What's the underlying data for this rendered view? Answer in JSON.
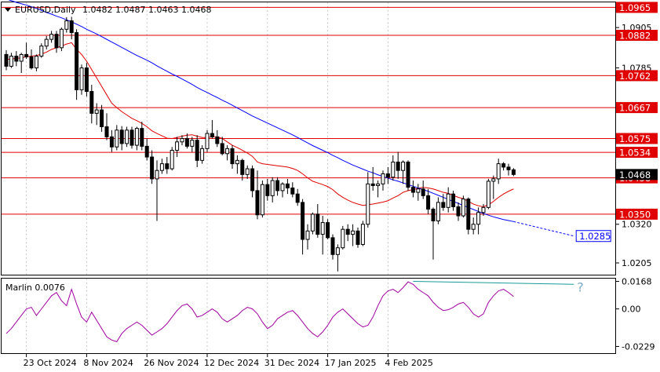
{
  "header": {
    "symbol_label": "EURUSD,Daily",
    "ohlc": "1.0482 1.0487 1.0463 1.0468"
  },
  "chart_data": [
    {
      "type": "candlestick",
      "title": "EURUSD,Daily 1.0482 1.0487 1.0463 1.0468",
      "ylim": [
        1.017,
        1.098
      ],
      "price_ticks": [
        "1.0905",
        "1.0785",
        "1.0455",
        "1.0320",
        "1.0205"
      ],
      "current_price": "1.0468",
      "x_dates": [
        "23 Oct 2024",
        "8 Nov 2024",
        "26 Nov 2024",
        "12 Dec 2024",
        "31 Dec 2024",
        "17 Jan 2025",
        "4 Feb 2025"
      ],
      "levels": [
        {
          "value": 1.0965,
          "label": "1.0965"
        },
        {
          "value": 1.0882,
          "label": "1.0882"
        },
        {
          "value": 1.0762,
          "label": "1.0762"
        },
        {
          "value": 1.0667,
          "label": "1.0667"
        },
        {
          "value": 1.0575,
          "label": "1.0575"
        },
        {
          "value": 1.0534,
          "label": "1.0534"
        },
        {
          "value": 1.0458,
          "label": "1.0458"
        },
        {
          "value": 1.035,
          "label": "1.0350"
        }
      ],
      "ohlc": [
        [
          1.0825,
          1.0838,
          1.0778,
          1.079
        ],
        [
          1.079,
          1.083,
          1.0785,
          1.082
        ],
        [
          1.082,
          1.0835,
          1.079,
          1.0805
        ],
        [
          1.0805,
          1.083,
          1.077,
          1.0825
        ],
        [
          1.0825,
          1.086,
          1.0812,
          1.0818
        ],
        [
          1.0818,
          1.084,
          1.078,
          1.0785
        ],
        [
          1.0785,
          1.0825,
          1.0775,
          1.082
        ],
        [
          1.082,
          1.0858,
          1.0815,
          1.085
        ],
        [
          1.085,
          1.088,
          1.084,
          1.087
        ],
        [
          1.087,
          1.0895,
          1.086,
          1.0885
        ],
        [
          1.0885,
          1.0895,
          1.083,
          1.0845
        ],
        [
          1.0845,
          1.0905,
          1.0835,
          1.09
        ],
        [
          1.09,
          1.0936,
          1.089,
          1.0925
        ],
        [
          1.0925,
          1.0937,
          1.087,
          1.089
        ],
        [
          1.089,
          1.09,
          1.069,
          1.072
        ],
        [
          1.072,
          1.0795,
          1.0705,
          1.0785
        ],
        [
          1.0785,
          1.08,
          1.07,
          1.0715
        ],
        [
          1.0715,
          1.0735,
          1.062,
          1.065
        ],
        [
          1.065,
          1.068,
          1.0615,
          1.066
        ],
        [
          1.066,
          1.0675,
          1.0595,
          1.061
        ],
        [
          1.061,
          1.065,
          1.057,
          1.058
        ],
        [
          1.058,
          1.06,
          1.0535,
          1.055
        ],
        [
          1.055,
          1.0615,
          1.054,
          1.06
        ],
        [
          1.06,
          1.0612,
          1.054,
          1.056
        ],
        [
          1.056,
          1.061,
          1.055,
          1.06
        ],
        [
          1.06,
          1.061,
          1.0545,
          1.0555
        ],
        [
          1.0555,
          1.061,
          1.054,
          1.0605
        ],
        [
          1.0605,
          1.0625,
          1.054,
          1.0552
        ],
        [
          1.0552,
          1.0575,
          1.051,
          1.052
        ],
        [
          1.052,
          1.054,
          1.044,
          1.0455
        ],
        [
          1.0455,
          1.051,
          1.033,
          1.048
        ],
        [
          1.048,
          1.0515,
          1.047,
          1.05
        ],
        [
          1.05,
          1.052,
          1.047,
          1.0485
        ],
        [
          1.0485,
          1.055,
          1.048,
          1.054
        ],
        [
          1.054,
          1.058,
          1.052,
          1.0565
        ],
        [
          1.0565,
          1.0585,
          1.0555,
          1.0575
        ],
        [
          1.0575,
          1.059,
          1.0545,
          1.0552
        ],
        [
          1.0552,
          1.058,
          1.0535,
          1.057
        ],
        [
          1.057,
          1.0585,
          1.049,
          1.051
        ],
        [
          1.051,
          1.0555,
          1.05,
          1.0545
        ],
        [
          1.0545,
          1.06,
          1.0535,
          1.059
        ],
        [
          1.059,
          1.063,
          1.0575,
          1.058
        ],
        [
          1.058,
          1.06,
          1.055,
          1.056
        ],
        [
          1.056,
          1.058,
          1.0525,
          1.053
        ],
        [
          1.053,
          1.0555,
          1.051,
          1.0545
        ],
        [
          1.0545,
          1.0555,
          1.0485,
          1.05
        ],
        [
          1.05,
          1.0525,
          1.047,
          1.051
        ],
        [
          1.051,
          1.0515,
          1.045,
          1.0468
        ],
        [
          1.0468,
          1.0495,
          1.0455,
          1.0485
        ],
        [
          1.0485,
          1.0495,
          1.04,
          1.042
        ],
        [
          1.042,
          1.048,
          1.0335,
          1.0348
        ],
        [
          1.0348,
          1.045,
          1.034,
          1.0438
        ],
        [
          1.0438,
          1.0455,
          1.039,
          1.0405
        ],
        [
          1.0405,
          1.046,
          1.0385,
          1.045
        ],
        [
          1.045,
          1.046,
          1.0405,
          1.042
        ],
        [
          1.042,
          1.0445,
          1.04,
          1.044
        ],
        [
          1.044,
          1.0455,
          1.041,
          1.0428
        ],
        [
          1.0428,
          1.0445,
          1.04,
          1.041
        ],
        [
          1.041,
          1.0425,
          1.0375,
          1.0385
        ],
        [
          1.0385,
          1.0395,
          1.023,
          1.0275
        ],
        [
          1.0275,
          1.032,
          1.0245,
          1.03
        ],
        [
          1.03,
          1.0355,
          1.029,
          1.035
        ],
        [
          1.035,
          1.038,
          1.028,
          1.029
        ],
        [
          1.029,
          1.0345,
          1.023,
          1.0325
        ],
        [
          1.0325,
          1.0335,
          1.0275,
          1.028
        ],
        [
          1.028,
          1.029,
          1.0215,
          1.023
        ],
        [
          1.023,
          1.026,
          1.018,
          1.025
        ],
        [
          1.025,
          1.0315,
          1.0245,
          1.0305
        ],
        [
          1.0305,
          1.032,
          1.027,
          1.029
        ],
        [
          1.029,
          1.032,
          1.0255,
          1.03
        ],
        [
          1.03,
          1.031,
          1.025,
          1.026
        ],
        [
          1.026,
          1.033,
          1.0255,
          1.032
        ],
        [
          1.032,
          1.0475,
          1.031,
          1.044
        ],
        [
          1.044,
          1.049,
          1.042,
          1.0435
        ],
        [
          1.0435,
          1.045,
          1.04,
          1.044
        ],
        [
          1.044,
          1.048,
          1.042,
          1.047
        ],
        [
          1.047,
          1.049,
          1.044,
          1.046
        ],
        [
          1.046,
          1.0525,
          1.045,
          1.0505
        ],
        [
          1.0505,
          1.0535,
          1.0455,
          1.048
        ],
        [
          1.048,
          1.051,
          1.044,
          1.0505
        ],
        [
          1.0505,
          1.051,
          1.042,
          1.043
        ],
        [
          1.043,
          1.045,
          1.04,
          1.0415
        ],
        [
          1.0415,
          1.044,
          1.039,
          1.0425
        ],
        [
          1.0425,
          1.045,
          1.0395,
          1.0405
        ],
        [
          1.0405,
          1.0425,
          1.035,
          1.0365
        ],
        [
          1.0365,
          1.037,
          1.0215,
          1.033
        ],
        [
          1.033,
          1.04,
          1.032,
          1.0385
        ],
        [
          1.0385,
          1.041,
          1.036,
          1.037
        ],
        [
          1.037,
          1.043,
          1.0355,
          1.041
        ],
        [
          1.041,
          1.042,
          1.036,
          1.0372
        ],
        [
          1.0372,
          1.0385,
          1.033,
          1.0345
        ],
        [
          1.0345,
          1.0405,
          1.034,
          1.0395
        ],
        [
          1.0395,
          1.04,
          1.029,
          1.0305
        ],
        [
          1.0305,
          1.034,
          1.029,
          1.032
        ],
        [
          1.032,
          1.037,
          1.029,
          1.0355
        ],
        [
          1.0355,
          1.038,
          1.0345,
          1.037
        ],
        [
          1.037,
          1.0455,
          1.0365,
          1.0448
        ],
        [
          1.0448,
          1.0465,
          1.0395,
          1.0455
        ],
        [
          1.0455,
          1.0515,
          1.044,
          1.05
        ],
        [
          1.05,
          1.0505,
          1.048,
          1.049
        ],
        [
          1.049,
          1.05,
          1.0465,
          1.0482
        ],
        [
          1.0482,
          1.0487,
          1.0463,
          1.0468
        ]
      ],
      "ma_red": [
        1.081,
        1.0812,
        1.0813,
        1.0815,
        1.0818,
        1.082,
        1.0822,
        1.0826,
        1.0832,
        1.084,
        1.0845,
        1.085,
        1.0856,
        1.086,
        1.084,
        1.0825,
        1.0805,
        1.078,
        1.0755,
        1.073,
        1.0705,
        1.068,
        1.0667,
        1.0655,
        1.0645,
        1.0635,
        1.0628,
        1.062,
        1.061,
        1.0598,
        1.059,
        1.0583,
        1.0576,
        1.0575,
        1.0578,
        1.0582,
        1.0585,
        1.0586,
        1.0582,
        1.0578,
        1.0578,
        1.058,
        1.058,
        1.0575,
        1.0565,
        1.0555,
        1.0548,
        1.054,
        1.0532,
        1.0522,
        1.0505,
        1.05,
        1.0498,
        1.0496,
        1.0494,
        1.0492,
        1.049,
        1.0486,
        1.048,
        1.047,
        1.0458,
        1.0448,
        1.0443,
        1.0438,
        1.0432,
        1.0423,
        1.041,
        1.04,
        1.0392,
        1.0385,
        1.038,
        1.0376,
        1.0378,
        1.038,
        1.0383,
        1.0386,
        1.039,
        1.0398,
        1.0405,
        1.0415,
        1.042,
        1.0423,
        1.0427,
        1.043,
        1.0428,
        1.0425,
        1.042,
        1.0415,
        1.0412,
        1.0406,
        1.04,
        1.0396,
        1.0388,
        1.038,
        1.0375,
        1.0372,
        1.0378,
        1.0388,
        1.04,
        1.041,
        1.0418,
        1.0425
      ],
      "ma_blue": [
        1.099,
        1.0985,
        1.098,
        1.0976,
        1.0972,
        1.0967,
        1.0962,
        1.0956,
        1.095,
        1.0945,
        1.0939,
        1.0934,
        1.0928,
        1.0922,
        1.0915,
        1.0908,
        1.09,
        1.0893,
        1.0886,
        1.0878,
        1.087,
        1.0862,
        1.0854,
        1.0846,
        1.0838,
        1.083,
        1.0822,
        1.0815,
        1.0808,
        1.08,
        1.0791,
        1.0783,
        1.0775,
        1.0767,
        1.076,
        1.0752,
        1.0744,
        1.0736,
        1.0727,
        1.0719,
        1.0712,
        1.0704,
        1.0697,
        1.0689,
        1.0682,
        1.0674,
        1.0666,
        1.0658,
        1.065,
        1.0642,
        1.0635,
        1.0628,
        1.0621,
        1.0614,
        1.0607,
        1.06,
        1.0593,
        1.0586,
        1.0578,
        1.057,
        1.0562,
        1.0554,
        1.0547,
        1.054,
        1.0533,
        1.0525,
        1.0518,
        1.051,
        1.0503,
        1.0496,
        1.049,
        1.0484,
        1.0478,
        1.0473,
        1.0467,
        1.0462,
        1.0457,
        1.0452,
        1.0448,
        1.0443,
        1.0438,
        1.0433,
        1.0428,
        1.0423,
        1.0418,
        1.0412,
        1.0406,
        1.04,
        1.0394,
        1.0388,
        1.0382,
        1.0376,
        1.037,
        1.0364,
        1.0358,
        1.0352,
        1.0347,
        1.0342,
        1.0338,
        1.0334,
        1.0331,
        1.0328
      ],
      "ma_blue_projection": [
        [
          101,
          1.0328
        ],
        [
          113,
          1.0285
        ]
      ],
      "ma_blue_label": "1.0285"
    },
    {
      "type": "line",
      "title": "Marlin 0.0076",
      "ylim": [
        -0.027,
        0.0185
      ],
      "price_ticks": [
        "0.0168",
        "0.00",
        "-0.0229"
      ],
      "marker": "?",
      "values": [
        -0.015,
        -0.012,
        -0.008,
        -0.004,
        0.0,
        0.001,
        -0.004,
        0.0,
        0.004,
        0.008,
        0.01,
        0.005,
        0.002,
        0.012,
        0.003,
        -0.005,
        -0.008,
        -0.002,
        -0.007,
        -0.012,
        -0.017,
        -0.019,
        -0.02,
        -0.015,
        -0.012,
        -0.01,
        -0.008,
        -0.01,
        -0.013,
        -0.016,
        -0.014,
        -0.012,
        -0.009,
        -0.005,
        -0.001,
        0.002,
        0.003,
        0.0,
        -0.005,
        -0.004,
        -0.002,
        0.0,
        -0.002,
        -0.006,
        -0.008,
        -0.006,
        -0.004,
        -0.001,
        0.001,
        0.0,
        -0.003,
        -0.008,
        -0.012,
        -0.01,
        -0.006,
        -0.004,
        -0.002,
        -0.001,
        -0.004,
        -0.008,
        -0.012,
        -0.015,
        -0.017,
        -0.014,
        -0.01,
        -0.005,
        -0.002,
        0.0,
        -0.003,
        -0.006,
        -0.009,
        -0.011,
        -0.01,
        -0.005,
        0.002,
        0.008,
        0.011,
        0.012,
        0.01,
        0.013,
        0.0165,
        0.015,
        0.012,
        0.01,
        0.008,
        0.004,
        0.001,
        -0.001,
        -0.0005,
        0.001,
        0.003,
        0.004,
        0.001,
        -0.003,
        -0.005,
        -0.003,
        0.004,
        0.008,
        0.011,
        0.012,
        0.01,
        0.0076
      ],
      "divergence_line": [
        [
          81,
          0.0168
        ],
        [
          113,
          0.015
        ]
      ]
    }
  ]
}
